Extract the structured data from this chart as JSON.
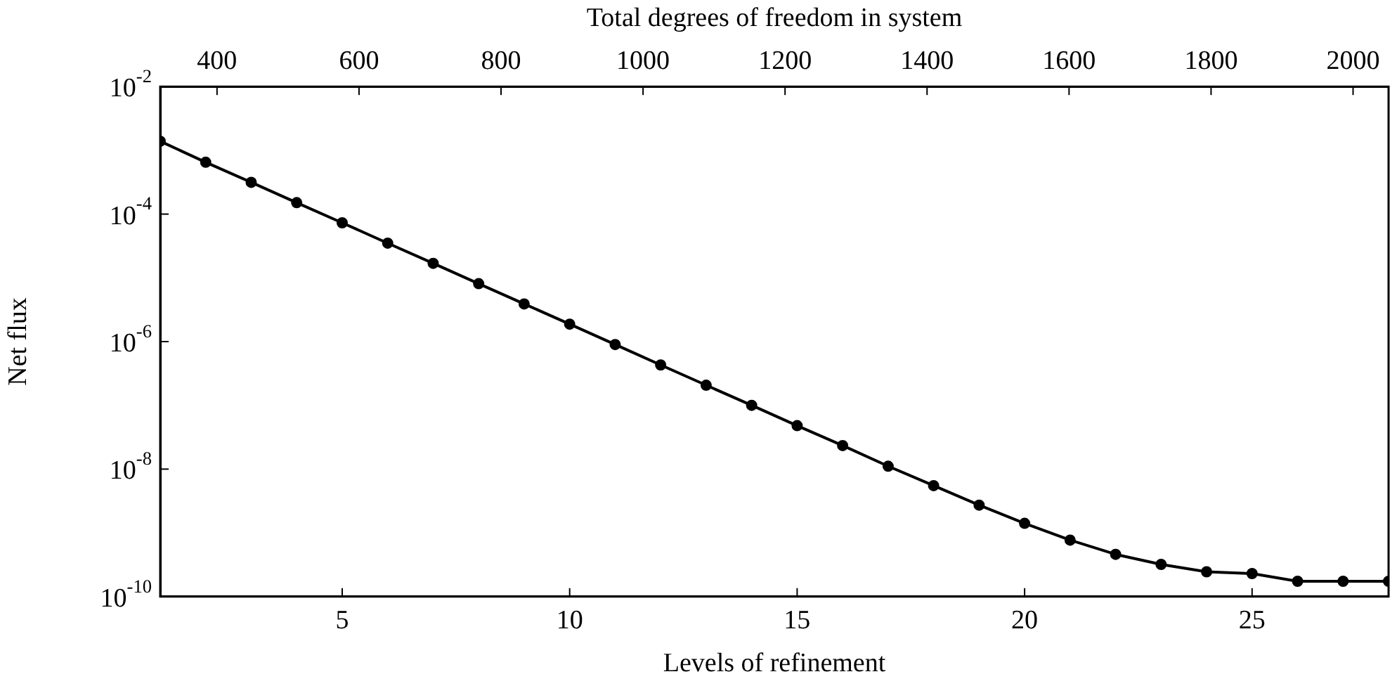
{
  "chart_data": {
    "type": "line",
    "xlabel": "Levels of refinement",
    "ylabel": "Net flux",
    "x2label": "Total degrees of freedom in system",
    "x": [
      1,
      2,
      3,
      4,
      5,
      6,
      7,
      8,
      9,
      10,
      11,
      12,
      13,
      14,
      15,
      16,
      17,
      18,
      19,
      20,
      21,
      22,
      23,
      24,
      25,
      26,
      27,
      28
    ],
    "series": [
      {
        "color": "#000000",
        "values": [
          0.00139,
          0.00065,
          0.000315,
          0.000151,
          7.3e-05,
          3.5e-05,
          1.69e-05,
          8.1e-06,
          3.9e-06,
          1.88e-06,
          9e-07,
          4.3e-07,
          2.07e-07,
          1e-07,
          4.8e-08,
          2.34e-08,
          1.11e-08,
          5.5e-09,
          2.72e-09,
          1.41e-09,
          7.7e-10,
          4.6e-10,
          3.2e-10,
          2.45e-10,
          2.3e-10,
          1.74e-10,
          1.74e-10,
          1.74e-10
        ]
      }
    ],
    "xlim": [
      1,
      28
    ],
    "xticks": [
      5,
      10,
      15,
      20,
      25
    ],
    "x2lim": [
      320,
      2050
    ],
    "x2ticks": [
      400,
      600,
      800,
      1000,
      1200,
      1400,
      1600,
      1800,
      2000
    ],
    "ylim": [
      1e-10,
      0.01
    ],
    "yticks": [
      {
        "value": 1e-10,
        "label": "10$^{-10}$"
      },
      {
        "value": 1e-08,
        "label": "10$^{-8}$"
      },
      {
        "value": 1e-06,
        "label": "10$^{-6}$"
      },
      {
        "value": 0.0001,
        "label": "10$^{-4}$"
      },
      {
        "value": 0.01,
        "label": "10$^{-2}$"
      }
    ],
    "log": "y",
    "grid": false,
    "legend": false,
    "marker": "circle",
    "line_style": "solid"
  }
}
